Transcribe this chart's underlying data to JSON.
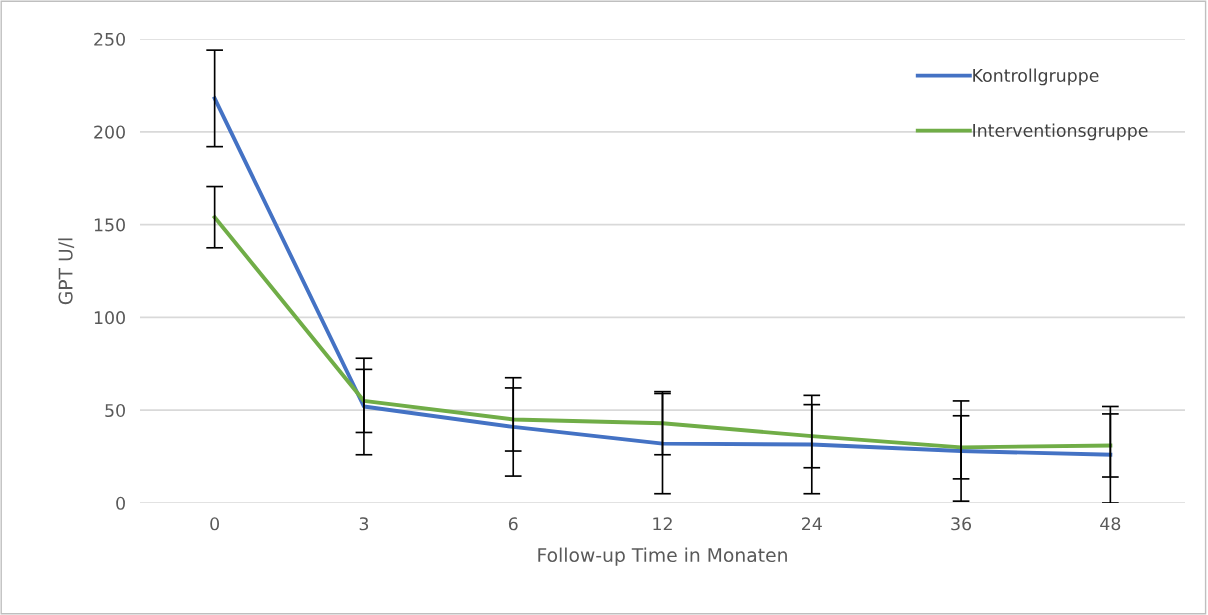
{
  "chart_data": {
    "type": "line",
    "xlabel": "Follow-up Time in Monaten",
    "ylabel": "GPT U/l",
    "categories": [
      "0",
      "3",
      "6",
      "12",
      "24",
      "36",
      "48"
    ],
    "ylim": [
      0,
      250
    ],
    "yticks": [
      0,
      50,
      100,
      150,
      200,
      250
    ],
    "grid": "y",
    "legend": "top right",
    "marker": "none",
    "line_style": "solid",
    "series": [
      {
        "name": "Kontrollgruppe",
        "color": "#4472c4",
        "values": [
          218,
          52,
          41,
          32,
          31.5,
          28,
          26
        ],
        "errors": [
          26,
          26,
          26.5,
          27,
          26.5,
          27,
          26
        ]
      },
      {
        "name": "Interventionsgruppe",
        "color": "#70ad47",
        "values": [
          154,
          55,
          45,
          43,
          36,
          30,
          31
        ],
        "errors": [
          16.5,
          17,
          17,
          17,
          17,
          17,
          17
        ]
      }
    ]
  }
}
